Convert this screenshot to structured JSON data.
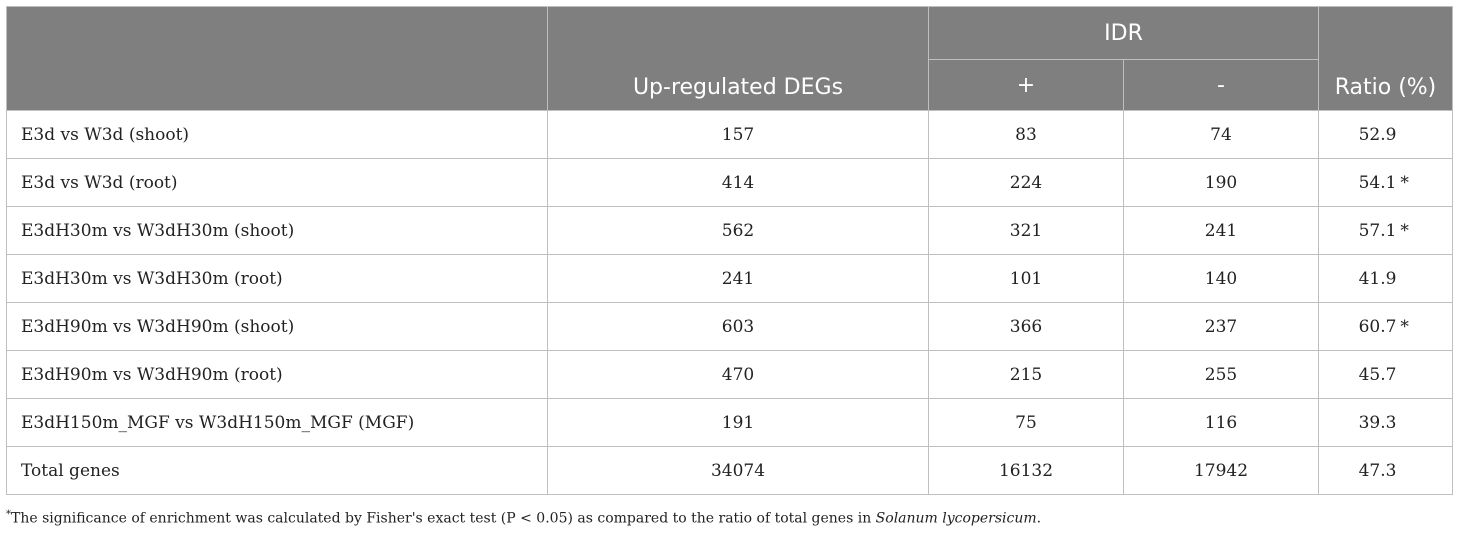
{
  "header": {
    "group_label": "IDR",
    "col_degs": "Up-regulated DEGs",
    "col_plus": "+",
    "col_minus": "-",
    "col_ratio": "Ratio (%)"
  },
  "rows": [
    {
      "label": "E3d vs W3d (shoot)",
      "degs": "157",
      "plus": "83",
      "minus": "74",
      "ratio": "52.9",
      "sig": ""
    },
    {
      "label": "E3d vs W3d (root)",
      "degs": "414",
      "plus": "224",
      "minus": "190",
      "ratio": "54.1",
      "sig": "*"
    },
    {
      "label": "E3dH30m vs W3dH30m (shoot)",
      "degs": "562",
      "plus": "321",
      "minus": "241",
      "ratio": "57.1",
      "sig": "*"
    },
    {
      "label": "E3dH30m vs W3dH30m (root)",
      "degs": "241",
      "plus": "101",
      "minus": "140",
      "ratio": "41.9",
      "sig": ""
    },
    {
      "label": "E3dH90m vs W3dH90m (shoot)",
      "degs": "603",
      "plus": "366",
      "minus": "237",
      "ratio": "60.7",
      "sig": "*"
    },
    {
      "label": "E3dH90m vs W3dH90m (root)",
      "degs": "470",
      "plus": "215",
      "minus": "255",
      "ratio": "45.7",
      "sig": ""
    },
    {
      "label": "E3dH150m_MGF vs W3dH150m_MGF (MGF)",
      "degs": "191",
      "plus": "75",
      "minus": "116",
      "ratio": "39.3",
      "sig": ""
    },
    {
      "label": "Total genes",
      "degs": "34074",
      "plus": "16132",
      "minus": "17942",
      "ratio": "47.3",
      "sig": ""
    }
  ],
  "footnote": {
    "marker": "*",
    "text": "The significance of enrichment was calculated by Fisher's exact test (P < 0.05) as compared to the ratio of total genes in ",
    "species": "Solanum lycopersicum",
    "end": "."
  }
}
